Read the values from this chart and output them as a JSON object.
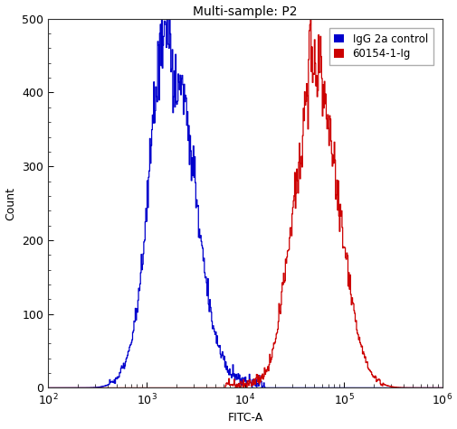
{
  "title": "Multi-sample: P2",
  "xlabel": "FITC-A",
  "ylabel": "Count",
  "xlim_log": [
    2,
    6
  ],
  "ylim": [
    0,
    500
  ],
  "yticks": [
    0,
    100,
    200,
    300,
    400,
    500
  ],
  "blue_label": "IgG 2a control",
  "red_label": "60154-1-Ig",
  "blue_color": "#0000cc",
  "red_color": "#cc0000",
  "blue_peak_log": 3.28,
  "blue_peak_height": 430,
  "blue_sigma_log": 0.22,
  "red_peak_log": 4.72,
  "red_peak_height": 415,
  "red_sigma_log": 0.2,
  "background_color": "#ffffff",
  "title_fontsize": 10,
  "label_fontsize": 9,
  "legend_fontsize": 8.5,
  "linewidth": 0.9
}
